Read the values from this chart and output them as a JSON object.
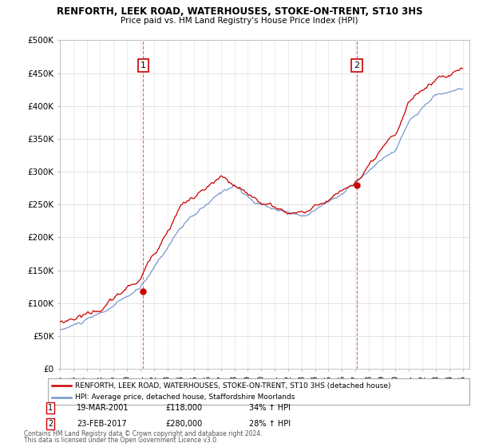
{
  "title": "RENFORTH, LEEK ROAD, WATERHOUSES, STOKE-ON-TRENT, ST10 3HS",
  "subtitle": "Price paid vs. HM Land Registry's House Price Index (HPI)",
  "legend_line1": "RENFORTH, LEEK ROAD, WATERHOUSES, STOKE-ON-TRENT, ST10 3HS (detached house)",
  "legend_line2": "HPI: Average price, detached house, Staffordshire Moorlands",
  "annotation1_label": "1",
  "annotation1_date": "19-MAR-2001",
  "annotation1_price": "£118,000",
  "annotation1_change": "34% ↑ HPI",
  "annotation2_label": "2",
  "annotation2_date": "23-FEB-2017",
  "annotation2_price": "£280,000",
  "annotation2_change": "28% ↑ HPI",
  "footnote1": "Contains HM Land Registry data © Crown copyright and database right 2024.",
  "footnote2": "This data is licensed under the Open Government Licence v3.0.",
  "ylim": [
    0,
    500000
  ],
  "yticks": [
    0,
    50000,
    100000,
    150000,
    200000,
    250000,
    300000,
    350000,
    400000,
    450000,
    500000
  ],
  "price_color": "#cc0000",
  "hpi_color": "#7799cc",
  "vline_color": "#cc0000",
  "background_color": "#ffffff",
  "grid_color": "#dddddd",
  "sale1_x": 2001.21,
  "sale1_y": 118000,
  "sale2_x": 2017.12,
  "sale2_y": 280000,
  "xmin": 1995,
  "xmax": 2025.5
}
